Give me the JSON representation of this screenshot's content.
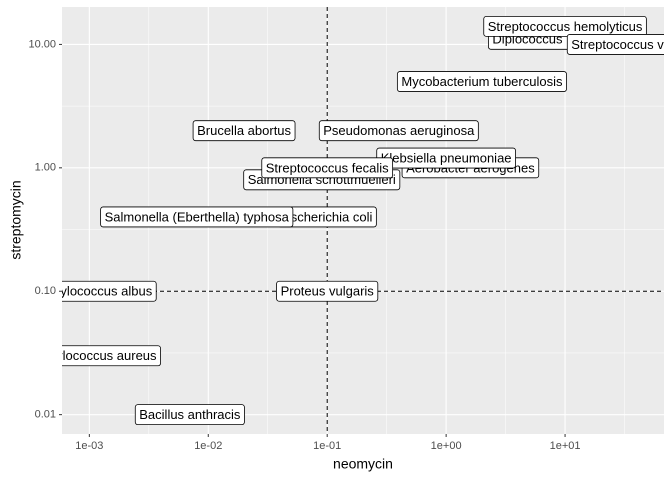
{
  "chart_data": {
    "type": "scatter",
    "x_label": "neomycin",
    "y_label": "streptomycin",
    "log_x": true,
    "log_y": true,
    "grid": true,
    "labels": [
      "Aerobacter aerogenes",
      "Brucella abortus",
      "Bacillus anthracis",
      "Diplococcus pneumoniae",
      "Escherichia coli",
      "Klebsiella pneumoniae",
      "Mycobacterium tuberculosis",
      "Proteus vulgaris",
      "Pseudomonas aeruginosa",
      "Salmonella (Eberthella) typhosa",
      "Salmonella schottmuelleri",
      "Staphylococcus albus",
      "Staphylococcus aureus",
      "Streptococcus fecalis",
      "Streptococcus hemolyticus",
      "Streptococcus viridans"
    ],
    "x": [
      1.6,
      0.02,
      0.007,
      10,
      0.1,
      1,
      2,
      0.1,
      0.4,
      0.008,
      0.09,
      0.001,
      0.001,
      0.1,
      10,
      40
    ],
    "y": [
      1,
      2,
      0.01,
      11,
      0.4,
      1.2,
      5,
      0.1,
      2,
      0.4,
      0.8,
      0.1,
      0.03,
      1,
      14,
      10
    ],
    "reference_lines": {
      "x": 0.1,
      "y": 0.1
    },
    "xlim": [
      0.000589,
      67.9
    ],
    "ylim": [
      0.00697,
      20.1
    ],
    "xticks": [
      {
        "value": 0.001,
        "label": "1e-03"
      },
      {
        "value": 0.01,
        "label": "1e-02"
      },
      {
        "value": 0.1,
        "label": "1e-01"
      },
      {
        "value": 1,
        "label": "1e+00"
      },
      {
        "value": 10,
        "label": "1e+01"
      }
    ],
    "yticks": [
      {
        "value": 0.01,
        "label": "0.01"
      },
      {
        "value": 0.1,
        "label": "0.10"
      },
      {
        "value": 1,
        "label": "1.00"
      },
      {
        "value": 10,
        "label": "10.00"
      }
    ]
  }
}
